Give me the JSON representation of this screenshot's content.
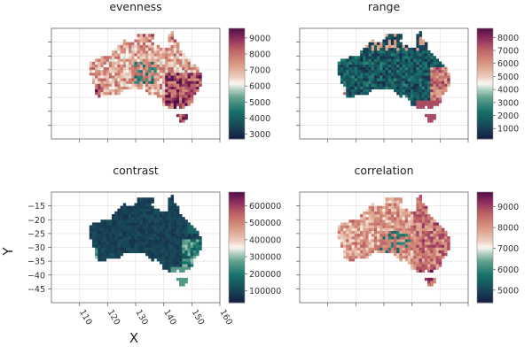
{
  "figure": {
    "xlabel": "X",
    "ylabel": "Y"
  },
  "chart_data": [
    {
      "type": "heatmap",
      "title": "evenness",
      "x_range": [
        100,
        160
      ],
      "y_range": [
        -50,
        -10
      ],
      "xticks": [
        110,
        120,
        130,
        140,
        150,
        160
      ],
      "yticks": [
        -45,
        -40,
        -35,
        -30,
        -25,
        -20,
        -15
      ],
      "show_tick_labels": false,
      "colorbar": {
        "ticks": [
          3000,
          4000,
          5000,
          6000,
          7000,
          8000,
          9000
        ],
        "range": [
          2700,
          9600
        ]
      },
      "colormap": "curl",
      "grid": true
    },
    {
      "type": "heatmap",
      "title": "range",
      "x_range": [
        100,
        160
      ],
      "y_range": [
        -50,
        -10
      ],
      "xticks": [
        110,
        120,
        130,
        140,
        150,
        160
      ],
      "yticks": [
        -45,
        -40,
        -35,
        -30,
        -25,
        -20,
        -15
      ],
      "show_tick_labels": false,
      "colorbar": {
        "ticks": [
          1000,
          2000,
          3000,
          4000,
          5000,
          6000,
          7000,
          8000
        ],
        "range": [
          200,
          8700
        ]
      },
      "colormap": "curl",
      "grid": true
    },
    {
      "type": "heatmap",
      "title": "contrast",
      "x_range": [
        100,
        160
      ],
      "y_range": [
        -50,
        -10
      ],
      "xticks": [
        110,
        120,
        130,
        140,
        150,
        160
      ],
      "xtick_labels": [
        "110",
        "120",
        "130",
        "140",
        "150",
        "160"
      ],
      "yticks": [
        -45,
        -40,
        -35,
        -30,
        -25,
        -20,
        -15
      ],
      "ytick_labels": [
        "−45",
        "−40",
        "−35",
        "−30",
        "−25",
        "−20",
        "−15"
      ],
      "show_tick_labels": true,
      "colorbar": {
        "ticks": [
          100000,
          200000,
          300000,
          400000,
          500000,
          600000
        ],
        "tick_labels": [
          "100000",
          "200000",
          "300000",
          "400000",
          "500000",
          "600000"
        ],
        "range": [
          30000,
          680000
        ]
      },
      "colormap": "curl",
      "grid": true
    },
    {
      "type": "heatmap",
      "title": "correlation",
      "x_range": [
        100,
        160
      ],
      "y_range": [
        -50,
        -10
      ],
      "xticks": [
        110,
        120,
        130,
        140,
        150,
        160
      ],
      "yticks": [
        -45,
        -40,
        -35,
        -30,
        -25,
        -20,
        -15
      ],
      "show_tick_labels": false,
      "colorbar": {
        "ticks": [
          5000,
          6000,
          7000,
          8000,
          9000
        ],
        "range": [
          4400,
          9700
        ]
      },
      "colormap": "curl",
      "grid": true
    }
  ]
}
